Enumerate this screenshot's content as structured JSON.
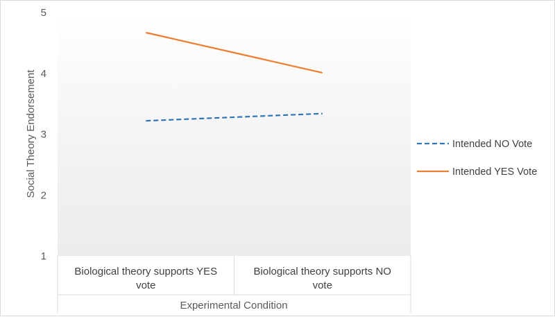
{
  "chart_data": {
    "type": "line",
    "title": "",
    "xlabel": "Experimental Condition",
    "ylabel": "Social Theory Endorsement",
    "ylim": [
      1,
      5
    ],
    "yticks": [
      "1",
      "2",
      "3",
      "4",
      "5"
    ],
    "categories": [
      [
        "Biological theory supports YES",
        "vote"
      ],
      [
        "Biological theory supports NO",
        "vote"
      ]
    ],
    "series": [
      {
        "name": "Intended NO Vote",
        "values": [
          3.22,
          3.34
        ],
        "color": "#2e75b6",
        "dash": "dashed"
      },
      {
        "name": "Intended YES Vote",
        "values": [
          4.67,
          4.01
        ],
        "color": "#ed7d31",
        "dash": "solid"
      }
    ],
    "legend_position": "right",
    "grid": false,
    "plot_background": "gradient-grey"
  }
}
